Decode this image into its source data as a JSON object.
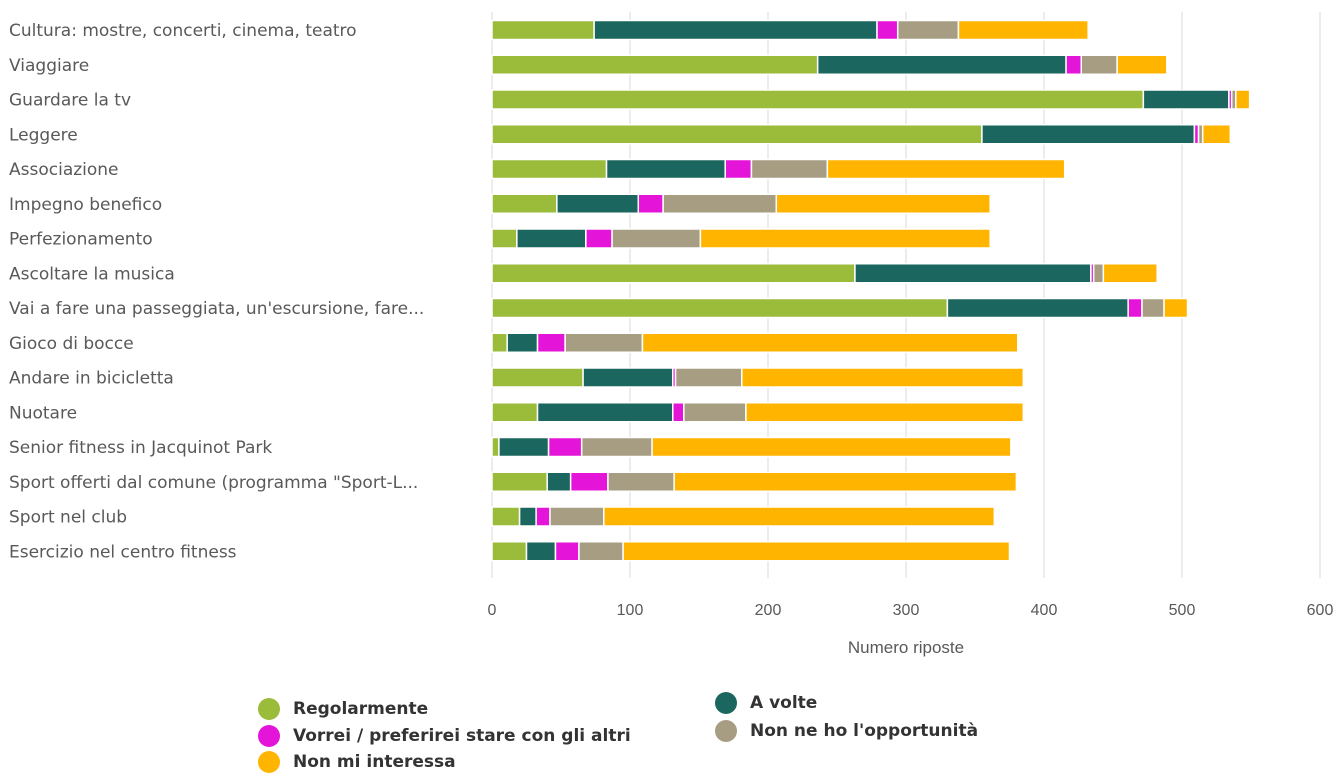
{
  "chart_data": {
    "type": "bar",
    "orientation": "horizontal",
    "stacked": true,
    "categories": [
      "Cultura: mostre, concerti, cinema, teatro",
      "Viaggiare",
      "Guardare la tv",
      "Leggere",
      "Associazione",
      "Impegno benefico",
      "Perfezionamento",
      "Ascoltare la musica",
      "Vai a fare una passeggiata, un'escursione, fare...",
      "Gioco di bocce",
      "Andare in bicicletta",
      "Nuotare",
      "Senior fitness in Jacquinot Park",
      "Sport offerti dal comune (programma \"Sport-L...",
      "Sport nel club",
      "Esercizio nel centro fitness"
    ],
    "series": [
      {
        "name": "Regolarmente",
        "color": "#9BBB3B",
        "values": [
          74,
          236,
          472,
          355,
          83,
          47,
          18,
          263,
          330,
          11,
          66,
          33,
          5,
          40,
          20,
          25
        ]
      },
      {
        "name": "A volte",
        "color": "#1B665E",
        "values": [
          205,
          180,
          62,
          154,
          86,
          59,
          50,
          171,
          131,
          22,
          65,
          98,
          36,
          17,
          12,
          21
        ]
      },
      {
        "name": "Vorrei / preferirei stare con gli altri",
        "color": "#E414D9",
        "values": [
          15,
          11,
          2,
          3,
          19,
          18,
          19,
          2,
          10,
          20,
          2,
          8,
          24,
          27,
          10,
          17
        ]
      },
      {
        "name": "Non ne ho l'opportunità",
        "color": "#A69D82",
        "values": [
          44,
          26,
          3,
          3,
          55,
          82,
          64,
          7,
          16,
          56,
          48,
          45,
          51,
          48,
          39,
          32
        ]
      },
      {
        "name": "Non mi interessa",
        "color": "#FFB500",
        "values": [
          94,
          36,
          10,
          20,
          172,
          155,
          210,
          39,
          17,
          272,
          204,
          201,
          260,
          248,
          283,
          280
        ]
      }
    ],
    "xlabel": "Numero riposte",
    "ylabel": "",
    "xlim": [
      0,
      600
    ],
    "xticks": [
      "0",
      "100",
      "200",
      "300",
      "400",
      "500",
      "600"
    ],
    "grid": "vertical",
    "legend_position": "bottom"
  },
  "legend": [
    {
      "label": "Regolarmente",
      "color": "#9BBB3B"
    },
    {
      "label": "A volte",
      "color": "#1B665E"
    },
    {
      "label": "Vorrei / preferirei stare con gli altri",
      "color": "#E414D9"
    },
    {
      "label": "Non ne ho l'opportunità",
      "color": "#A69D82"
    },
    {
      "label": "Non mi interessa",
      "color": "#FFB500"
    }
  ]
}
